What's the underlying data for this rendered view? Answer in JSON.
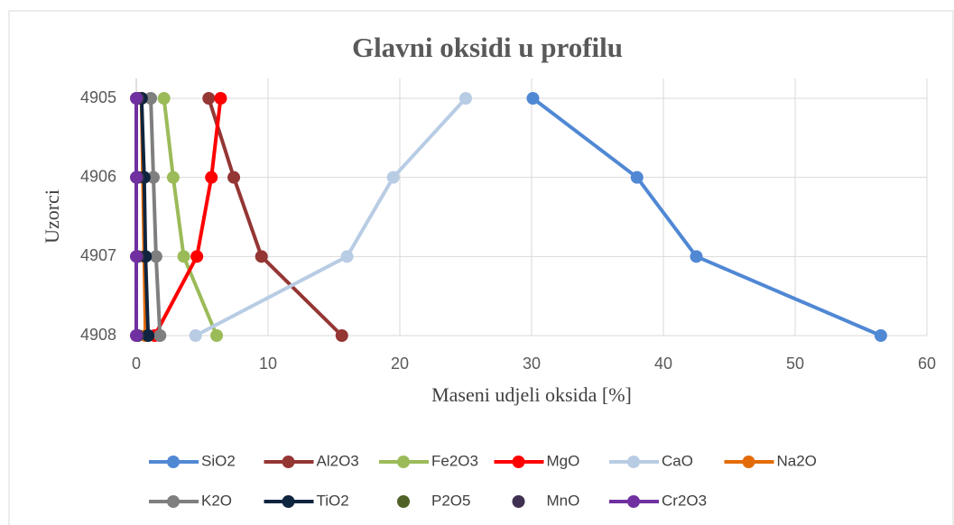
{
  "chart_data": {
    "type": "line",
    "title": "Glavni oksidi u profilu",
    "categories": [
      "4905",
      "4906",
      "4907",
      "4908"
    ],
    "x_label": "Maseni udjeli oksida [%]",
    "y_label": "Uzorci",
    "xlim": [
      0,
      60
    ],
    "xticks": [
      0,
      10,
      20,
      30,
      40,
      50,
      60
    ],
    "grid": true,
    "legend": "bottom",
    "series": [
      {
        "name": "SiO2",
        "color": "#5088d4",
        "values": [
          30.1,
          38.0,
          42.5,
          56.5
        ]
      },
      {
        "name": "Al2O3",
        "color": "#943634",
        "values": [
          5.5,
          7.4,
          9.5,
          15.6
        ]
      },
      {
        "name": "Fe2O3",
        "color": "#9bbb59",
        "values": [
          2.1,
          2.8,
          3.6,
          6.1
        ]
      },
      {
        "name": "MgO",
        "color": "#ff0000",
        "values": [
          6.4,
          5.7,
          4.6,
          1.4
        ]
      },
      {
        "name": "CaO",
        "color": "#b8cce4",
        "values": [
          25.0,
          19.5,
          16.0,
          4.5
        ]
      },
      {
        "name": "Na2O",
        "color": "#e36c09",
        "values": [
          0.4,
          0.5,
          0.6,
          0.7
        ]
      },
      {
        "name": "K2O",
        "color": "#7f7f7f",
        "values": [
          1.1,
          1.3,
          1.5,
          1.8
        ]
      },
      {
        "name": "TiO2",
        "color": "#0f243e",
        "values": [
          0.4,
          0.6,
          0.7,
          0.9
        ]
      },
      {
        "name": "P2O5",
        "color": "#4f6228",
        "line": false,
        "values": [
          0.1,
          0.1,
          0.1,
          0.1
        ]
      },
      {
        "name": "MnO",
        "color": "#403152",
        "line": false,
        "values": [
          0.1,
          0.1,
          0.1,
          0.1
        ]
      },
      {
        "name": "Cr2O3",
        "color": "#7030a0",
        "values": [
          0.0,
          0.0,
          0.0,
          0.0
        ]
      }
    ]
  }
}
